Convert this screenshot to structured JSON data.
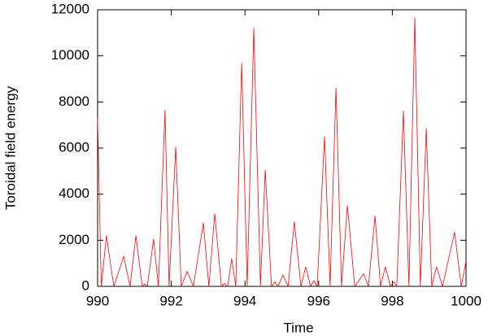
{
  "chart_data": {
    "type": "line",
    "x_label": "Time",
    "y_label": "Toroidal field energy",
    "color": "#ff0000",
    "x": [
      990.0,
      990.1,
      990.24,
      990.44,
      990.71,
      990.88,
      991.04,
      991.21,
      991.28,
      991.35,
      991.52,
      991.65,
      991.83,
      991.94,
      992.12,
      992.27,
      992.43,
      992.6,
      992.87,
      993.02,
      993.18,
      993.36,
      993.44,
      993.53,
      993.64,
      993.75,
      993.91,
      994.06,
      994.24,
      994.42,
      994.55,
      994.72,
      994.81,
      994.9,
      995.03,
      995.17,
      995.34,
      995.52,
      995.65,
      995.78,
      995.87,
      995.96,
      996.16,
      996.31,
      996.47,
      996.62,
      996.78,
      996.98,
      997.22,
      997.35,
      997.53,
      997.68,
      997.81,
      997.95,
      998.04,
      998.12,
      998.3,
      998.45,
      998.61,
      998.76,
      998.92,
      999.07,
      999.2,
      999.36,
      999.69,
      999.87,
      1000.0
    ],
    "values": [
      7300,
      0,
      2200,
      0,
      1300,
      0,
      2200,
      0,
      100,
      0,
      2050,
      0,
      7650,
      0,
      6050,
      0,
      650,
      0,
      2750,
      0,
      3150,
      0,
      120,
      0,
      1200,
      0,
      9700,
      0,
      11200,
      0,
      5050,
      0,
      200,
      0,
      500,
      0,
      2800,
      0,
      850,
      0,
      250,
      0,
      6500,
      0,
      8600,
      0,
      3500,
      0,
      550,
      0,
      3050,
      0,
      850,
      0,
      200,
      0,
      7600,
      0,
      11650,
      0,
      6850,
      0,
      850,
      0,
      2350,
      0,
      1100
    ],
    "xlim": [
      990,
      1000
    ],
    "xticks": [
      990,
      992,
      994,
      996,
      998,
      1000
    ],
    "ylim": [
      0,
      12000
    ],
    "yticks": [
      0,
      2000,
      4000,
      6000,
      8000,
      10000,
      12000
    ]
  }
}
